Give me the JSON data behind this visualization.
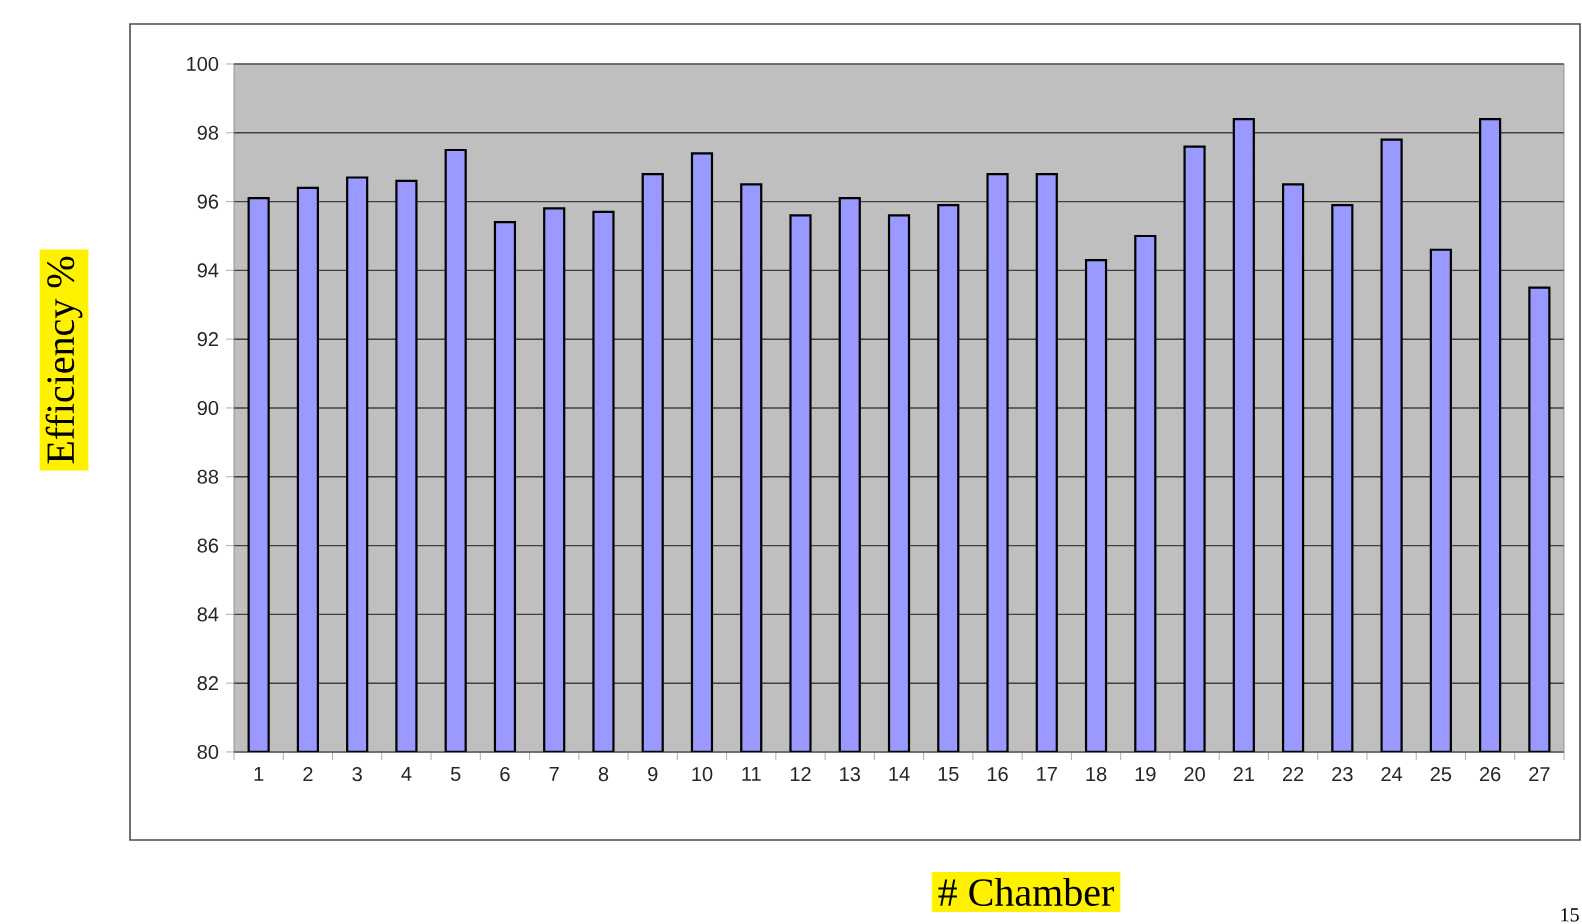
{
  "chart_data": {
    "type": "bar",
    "xlabel": "# Chamber",
    "ylabel": "Efficiency %",
    "categories": [
      "1",
      "2",
      "3",
      "4",
      "5",
      "6",
      "7",
      "8",
      "9",
      "10",
      "11",
      "12",
      "13",
      "14",
      "15",
      "16",
      "17",
      "18",
      "19",
      "20",
      "21",
      "22",
      "23",
      "24",
      "25",
      "26",
      "27"
    ],
    "values": [
      96.1,
      96.4,
      96.7,
      96.6,
      97.5,
      95.4,
      95.8,
      95.7,
      96.8,
      97.4,
      96.5,
      95.6,
      96.1,
      95.6,
      95.9,
      96.8,
      96.8,
      94.3,
      95.0,
      97.6,
      98.4,
      96.5,
      95.9,
      97.8,
      94.6,
      98.4,
      93.5
    ],
    "color": "#9999ff",
    "ylim": [
      80,
      100
    ],
    "yticks": [
      80,
      82,
      84,
      86,
      88,
      90,
      92,
      94,
      96,
      98,
      100
    ],
    "grid": "y",
    "annotations": [
      "15"
    ]
  }
}
